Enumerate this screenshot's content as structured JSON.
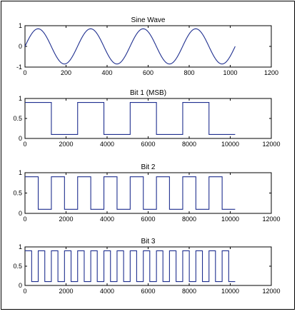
{
  "chart_data": [
    {
      "type": "line",
      "title": "Sine Wave",
      "xlabel": "",
      "ylabel": "",
      "xlim": [
        0,
        1200
      ],
      "ylim": [
        -1,
        1
      ],
      "xticks": [
        0,
        200,
        400,
        600,
        800,
        1000,
        1200
      ],
      "yticks": [
        -1,
        0,
        1
      ],
      "grid": false,
      "line_color": "#1f2f8f",
      "series": [
        {
          "generator": "sine",
          "x_end": 1024,
          "period": 256,
          "amplitude": 0.85,
          "offset": 0
        }
      ]
    },
    {
      "type": "line",
      "title": "Bit 1 (MSB)",
      "xlabel": "",
      "ylabel": "",
      "xlim": [
        0,
        12000
      ],
      "ylim": [
        0,
        1
      ],
      "xticks": [
        0,
        2000,
        4000,
        6000,
        8000,
        10000,
        12000
      ],
      "yticks": [
        0,
        0.5,
        1
      ],
      "grid": false,
      "line_color": "#1f2f8f",
      "series": [
        {
          "generator": "bits",
          "high": 0.9,
          "low": 0.1,
          "x_end": 10240,
          "period": 2560,
          "harmonic": 1
        }
      ]
    },
    {
      "type": "line",
      "title": "Bit 2",
      "xlabel": "",
      "ylabel": "",
      "xlim": [
        0,
        12000
      ],
      "ylim": [
        0,
        1
      ],
      "xticks": [
        0,
        2000,
        4000,
        6000,
        8000,
        10000,
        12000
      ],
      "yticks": [
        0,
        0.5,
        1
      ],
      "grid": false,
      "line_color": "#1f2f8f",
      "series": [
        {
          "generator": "bits",
          "high": 0.9,
          "low": 0.1,
          "x_end": 10240,
          "period": 2560,
          "harmonic": 2
        }
      ]
    },
    {
      "type": "line",
      "title": "Bit 3",
      "xlabel": "",
      "ylabel": "",
      "xlim": [
        0,
        12000
      ],
      "ylim": [
        0,
        1
      ],
      "xticks": [
        0,
        2000,
        4000,
        6000,
        8000,
        10000,
        12000
      ],
      "yticks": [
        0,
        0.5,
        1
      ],
      "grid": false,
      "line_color": "#1f2f8f",
      "series": [
        {
          "generator": "bits",
          "high": 0.9,
          "low": 0.1,
          "x_end": 10240,
          "period": 2560,
          "harmonic": 4
        }
      ]
    }
  ]
}
